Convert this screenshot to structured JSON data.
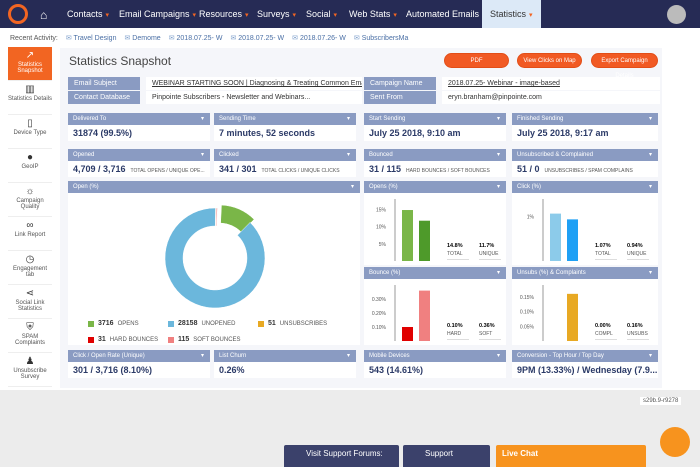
{
  "nav": {
    "items": [
      "Contacts",
      "Email Campaigns",
      "Resources",
      "Surveys",
      "Social",
      "Web Stats",
      "Automated Emails",
      "Statistics"
    ],
    "active": "Statistics"
  },
  "recent": {
    "label": "Recent Activity:",
    "items": [
      "Travel Design",
      "Demome",
      "2018.07.25- W",
      "2018.07.25- W",
      "2018.07.26- W",
      "SubscribersMa"
    ]
  },
  "sidebar": [
    {
      "label": "Statistics Snapshot",
      "icon": "trend-icon"
    },
    {
      "label": "Statistics Details",
      "icon": "bar-chart-icon"
    },
    {
      "label": "Device Type",
      "icon": "phone-icon"
    },
    {
      "label": "GeoIP",
      "icon": "globe-icon"
    },
    {
      "label": "Campaign Quality",
      "icon": "lightbulb-icon"
    },
    {
      "label": "Link Report",
      "icon": "link-icon"
    },
    {
      "label": "Engagement tab",
      "icon": "clock-icon"
    },
    {
      "label": "Social Link Statistics",
      "icon": "share-icon"
    },
    {
      "label": "SPAM Complaints",
      "icon": "shield-icon"
    },
    {
      "label": "Unsubscribe Survey",
      "icon": "user-icon"
    }
  ],
  "page": {
    "title": "Statistics Snapshot",
    "buttons": {
      "pdf": "PDF",
      "map": "View Clicks on Map",
      "export": "Export Campaign Details"
    }
  },
  "info": {
    "subject_label": "Email Subject",
    "subject": "WEBINAR STARTING SOON | Diagnosing & Treating Common Email Marketi",
    "campaign_label": "Campaign Name",
    "campaign": "2018.07.25- Webinar - image-based",
    "db_label": "Contact Database",
    "db": "Pinpointe Subscribers - Newsletter and Webinars...",
    "from_label": "Sent From",
    "from": "eryn.branham@pinpointe.com"
  },
  "stats": [
    {
      "label": "Delivered To",
      "value": "31874 (99.5%)",
      "note": ""
    },
    {
      "label": "Sending Time",
      "value": "7 minutes, 52 seconds",
      "note": ""
    },
    {
      "label": "Start Sending",
      "value": "July 25 2018, 9:10 am",
      "note": ""
    },
    {
      "label": "Finished Sending",
      "value": "July 25 2018, 9:17 am",
      "note": ""
    },
    {
      "label": "Opened",
      "value": "4,709 / 3,716",
      "note": "TOTAL OPENS / UNIQUE OPE..."
    },
    {
      "label": "Clicked",
      "value": "341 / 301",
      "note": "TOTAL CLICKS / UNIQUE CLICKS"
    },
    {
      "label": "Bounced",
      "value": "31 / 115",
      "note": "HARD BOUNCES / SOFT BOUNCES"
    },
    {
      "label": "Unsubscribed & Complained",
      "value": "51 / 0",
      "note": "UNSUBSCRIBES / SPAM COMPLAINS"
    },
    {
      "label": "Click / Open Rate (Unique)",
      "value": "301 / 3,716 (8.10%)",
      "note": ""
    },
    {
      "label": "List Churn",
      "value": "0.26%",
      "note": ""
    },
    {
      "label": "Mobile Devices",
      "value": "543 (14.61%)",
      "note": ""
    },
    {
      "label": "Conversion - Top Hour / Top Day",
      "value": "9PM (13.33%) / Wednesday (7.9...",
      "note": ""
    }
  ],
  "chart_data": [
    {
      "type": "pie",
      "title": "Open (%)",
      "donut": true,
      "slices": [
        {
          "name": "OPENS",
          "value": 3716,
          "color": "#7ab648"
        },
        {
          "name": "UNOPENED",
          "value": 28158,
          "color": "#6bb7dc"
        },
        {
          "name": "UNSUBSCRIBES",
          "value": 51,
          "color": "#e8a923"
        },
        {
          "name": "HARD BOUNCES",
          "value": 31,
          "color": "#e00000"
        },
        {
          "name": "SOFT BOUNCES",
          "value": 115,
          "color": "#f08080"
        }
      ]
    },
    {
      "type": "bar",
      "title": "Opens (%)",
      "categories": [
        "TOTAL",
        "UNIQUE"
      ],
      "values": [
        14.8,
        11.7
      ],
      "labels": [
        "14.8%",
        "11.7%"
      ],
      "ticks": [
        "5%",
        "10%",
        "15%"
      ],
      "tickvals": [
        5,
        10,
        15
      ],
      "ylim": [
        0,
        18
      ],
      "colors": [
        "#7ab648",
        "#4e9a2a"
      ]
    },
    {
      "type": "bar",
      "title": "Click (%)",
      "categories": [
        "TOTAL",
        "UNIQUE"
      ],
      "values": [
        1.07,
        0.94
      ],
      "labels": [
        "1.07%",
        "0.94%"
      ],
      "ticks": [
        "1%"
      ],
      "tickvals": [
        1
      ],
      "ylim": [
        0,
        1.4
      ],
      "colors": [
        "#8ccbea",
        "#1ea0f5"
      ]
    },
    {
      "type": "bar",
      "title": "Bounce (%)",
      "categories": [
        "HARD",
        "SOFT"
      ],
      "values": [
        0.1,
        0.36
      ],
      "labels": [
        "0.10%",
        "0.36%"
      ],
      "ticks": [
        "0.10%",
        "0.20%",
        "0.30%"
      ],
      "tickvals": [
        0.1,
        0.2,
        0.3
      ],
      "ylim": [
        0,
        0.4
      ],
      "colors": [
        "#e00000",
        "#f08080"
      ]
    },
    {
      "type": "bar",
      "title": "Unsubs (%) & Complaints",
      "categories": [
        "COMPL",
        "UNSUBS"
      ],
      "values": [
        0.0,
        0.16
      ],
      "labels": [
        "0.00%",
        "0.16%"
      ],
      "ticks": [
        "0.05%",
        "0.10%",
        "0.15%"
      ],
      "tickvals": [
        0.05,
        0.1,
        0.15
      ],
      "ylim": [
        0,
        0.19
      ],
      "colors": [
        "#e8a923",
        "#e8a923"
      ]
    }
  ],
  "footer": {
    "version": "s29b.9-r9278",
    "forums": "Visit Support Forums:",
    "support": "Support",
    "chat": "Live Chat"
  }
}
